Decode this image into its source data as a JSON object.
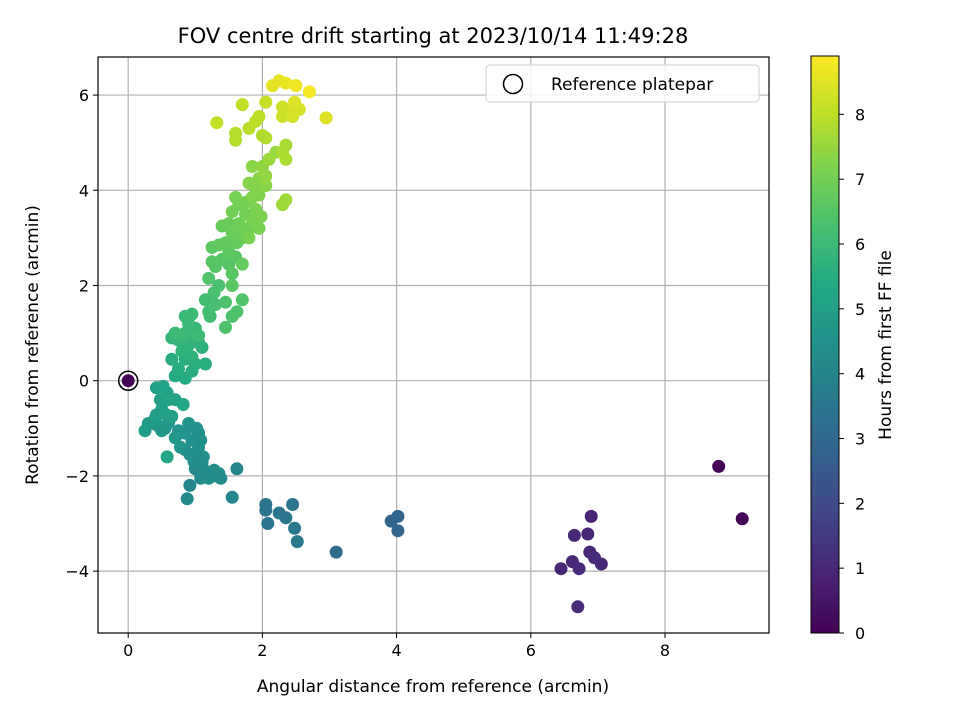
{
  "chart_data": {
    "type": "scatter",
    "title": "FOV centre drift starting at 2023/10/14 11:49:28",
    "xlabel": "Angular distance from reference (arcmin)",
    "ylabel": "Rotation from reference (arcmin)",
    "xlim": [
      -0.45,
      9.55
    ],
    "ylim": [
      -5.3,
      6.8
    ],
    "xticks": [
      0,
      2,
      4,
      6,
      8
    ],
    "yticks": [
      -4,
      -2,
      0,
      2,
      4,
      6
    ],
    "grid": true,
    "legend": {
      "placement": "top-right",
      "entries": [
        "Reference platepar"
      ]
    },
    "reference": {
      "x": 0,
      "y": 0
    },
    "colorbar": {
      "label": "Hours from first FF file",
      "colormap": "viridis",
      "range": [
        0,
        8.9
      ],
      "ticks": [
        0,
        1,
        2,
        3,
        4,
        5,
        6,
        7,
        8
      ]
    },
    "points": [
      [
        0,
        0,
        0.05
      ],
      [
        8.8,
        -1.8,
        0.1
      ],
      [
        9.15,
        -2.9,
        0.1
      ],
      [
        6.9,
        -2.85,
        0.9
      ],
      [
        6.65,
        -3.25,
        1.0
      ],
      [
        6.85,
        -3.22,
        0.95
      ],
      [
        6.45,
        -3.95,
        0.95
      ],
      [
        6.62,
        -3.8,
        1.0
      ],
      [
        6.72,
        -3.95,
        1.05
      ],
      [
        6.88,
        -3.6,
        1.0
      ],
      [
        6.95,
        -3.72,
        1.05
      ],
      [
        7.05,
        -3.85,
        1.0
      ],
      [
        6.7,
        -4.75,
        1.1
      ],
      [
        4.02,
        -2.85,
        2.9
      ],
      [
        3.92,
        -2.95,
        2.85
      ],
      [
        4.02,
        -3.15,
        2.9
      ],
      [
        3.1,
        -3.6,
        3.15
      ],
      [
        2.05,
        -2.6,
        3.4
      ],
      [
        2.05,
        -2.72,
        3.4
      ],
      [
        2.08,
        -3.0,
        3.45
      ],
      [
        2.25,
        -2.78,
        3.45
      ],
      [
        2.35,
        -2.88,
        3.5
      ],
      [
        2.45,
        -2.6,
        3.5
      ],
      [
        2.48,
        -3.1,
        3.55
      ],
      [
        2.52,
        -3.38,
        3.55
      ],
      [
        1.62,
        -1.85,
        4.05
      ],
      [
        1.55,
        -2.45,
        4.1
      ],
      [
        0.88,
        -2.48,
        4.15
      ],
      [
        0.92,
        -2.2,
        4.1
      ],
      [
        1.0,
        -1.85,
        4.2
      ],
      [
        1.08,
        -2.05,
        4.2
      ],
      [
        1.15,
        -1.9,
        4.2
      ],
      [
        1.2,
        -1.92,
        4.25
      ],
      [
        1.3,
        -2.0,
        4.25
      ],
      [
        1.35,
        -1.95,
        4.3
      ],
      [
        1.38,
        -2.05,
        4.25
      ],
      [
        1.28,
        -1.88,
        4.3
      ],
      [
        1.2,
        -2.05,
        4.3
      ],
      [
        1.1,
        -1.72,
        4.35
      ],
      [
        1.05,
        -1.6,
        4.35
      ],
      [
        0.98,
        -1.7,
        4.35
      ],
      [
        0.92,
        -1.55,
        4.4
      ],
      [
        0.85,
        -1.45,
        4.4
      ],
      [
        1.12,
        -1.6,
        4.4
      ],
      [
        1.05,
        -1.4,
        4.45
      ],
      [
        1.08,
        -1.25,
        4.45
      ],
      [
        1.05,
        -1.1,
        4.5
      ],
      [
        1.02,
        -1.0,
        4.5
      ],
      [
        0.95,
        -1.25,
        4.5
      ],
      [
        0.9,
        -0.9,
        4.55
      ],
      [
        0.85,
        -1.1,
        4.55
      ],
      [
        0.78,
        -1.4,
        4.6
      ],
      [
        0.75,
        -1.05,
        4.6
      ],
      [
        0.7,
        -1.2,
        4.65
      ],
      [
        0.6,
        -0.88,
        4.7
      ],
      [
        0.55,
        -1.0,
        4.7
      ],
      [
        0.5,
        -1.05,
        4.75
      ],
      [
        0.45,
        -0.95,
        4.75
      ],
      [
        0.4,
        -0.8,
        4.8
      ],
      [
        0.38,
        -0.9,
        4.85
      ],
      [
        0.3,
        -0.9,
        4.85
      ],
      [
        0.25,
        -1.05,
        4.9
      ],
      [
        0.42,
        -0.72,
        4.9
      ],
      [
        0.5,
        -0.6,
        4.95
      ],
      [
        0.48,
        -0.4,
        5.0
      ],
      [
        0.55,
        -0.7,
        5.0
      ],
      [
        0.65,
        -0.75,
        5.05
      ],
      [
        0.42,
        -0.15,
        5.05
      ],
      [
        0.52,
        -0.12,
        5.1
      ],
      [
        0.58,
        -0.25,
        5.1
      ],
      [
        0.6,
        -0.4,
        5.15
      ],
      [
        0.7,
        -0.4,
        5.15
      ],
      [
        0.82,
        -0.5,
        5.2
      ],
      [
        0.58,
        -1.6,
        5.25
      ],
      [
        0.7,
        0.1,
        5.4
      ],
      [
        0.85,
        0.05,
        5.45
      ],
      [
        0.95,
        0.2,
        5.5
      ],
      [
        0.75,
        0.25,
        5.5
      ],
      [
        0.85,
        0.45,
        5.55
      ],
      [
        0.65,
        0.45,
        5.55
      ],
      [
        1.0,
        0.35,
        5.6
      ],
      [
        1.15,
        0.35,
        5.6
      ],
      [
        1.1,
        0.7,
        5.65
      ],
      [
        0.95,
        0.5,
        5.7
      ],
      [
        1.05,
        0.8,
        5.7
      ],
      [
        0.9,
        0.75,
        5.75
      ],
      [
        0.8,
        0.62,
        5.75
      ],
      [
        0.92,
        0.9,
        5.8
      ],
      [
        0.75,
        0.85,
        5.8
      ],
      [
        0.65,
        0.9,
        5.85
      ],
      [
        0.85,
        1.0,
        5.85
      ],
      [
        0.95,
        1.05,
        5.9
      ],
      [
        1.0,
        1.1,
        5.9
      ],
      [
        0.9,
        1.2,
        5.95
      ],
      [
        0.85,
        1.35,
        5.95
      ],
      [
        0.95,
        1.4,
        6.0
      ],
      [
        0.78,
        0.95,
        6.0
      ],
      [
        0.7,
        1.0,
        6.05
      ],
      [
        1.05,
        0.95,
        6.05
      ],
      [
        1.15,
        1.7,
        6.15
      ],
      [
        1.2,
        1.45,
        6.2
      ],
      [
        1.22,
        1.35,
        6.2
      ],
      [
        1.3,
        1.6,
        6.25
      ],
      [
        1.28,
        1.85,
        6.3
      ],
      [
        1.35,
        2.0,
        6.3
      ],
      [
        1.45,
        1.65,
        6.35
      ],
      [
        1.55,
        1.35,
        6.35
      ],
      [
        1.62,
        1.45,
        6.4
      ],
      [
        1.45,
        1.12,
        6.4
      ],
      [
        1.7,
        1.7,
        6.45
      ],
      [
        1.2,
        2.15,
        6.45
      ],
      [
        1.3,
        2.4,
        6.5
      ],
      [
        1.4,
        2.55,
        6.5
      ],
      [
        1.25,
        2.5,
        6.55
      ],
      [
        1.5,
        2.45,
        6.55
      ],
      [
        1.55,
        2.0,
        6.6
      ],
      [
        1.55,
        2.25,
        6.6
      ],
      [
        1.6,
        2.6,
        6.6
      ],
      [
        1.5,
        2.7,
        6.65
      ],
      [
        1.25,
        2.8,
        6.65
      ],
      [
        1.35,
        2.85,
        6.7
      ],
      [
        1.45,
        2.9,
        6.7
      ],
      [
        1.62,
        2.9,
        6.75
      ],
      [
        1.7,
        2.45,
        6.75
      ],
      [
        1.4,
        3.25,
        6.8
      ],
      [
        1.5,
        3.3,
        6.85
      ],
      [
        1.55,
        3.1,
        6.85
      ],
      [
        1.6,
        3.2,
        6.9
      ],
      [
        1.7,
        3.0,
        6.9
      ],
      [
        1.75,
        3.1,
        6.9
      ],
      [
        1.8,
        3.2,
        6.95
      ],
      [
        1.65,
        3.3,
        6.95
      ],
      [
        1.55,
        3.55,
        7.0
      ],
      [
        1.65,
        3.7,
        7.0
      ],
      [
        1.75,
        3.5,
        7.0
      ],
      [
        1.6,
        3.85,
        7.05
      ],
      [
        1.75,
        3.75,
        7.05
      ],
      [
        1.85,
        3.35,
        7.1
      ],
      [
        1.8,
        3.0,
        7.1
      ],
      [
        1.95,
        3.2,
        7.1
      ],
      [
        1.9,
        3.6,
        7.15
      ],
      [
        1.98,
        3.45,
        7.15
      ],
      [
        1.85,
        3.85,
        7.2
      ],
      [
        1.95,
        3.9,
        7.2
      ],
      [
        1.8,
        4.15,
        7.25
      ],
      [
        1.9,
        4.05,
        7.25
      ],
      [
        1.95,
        4.25,
        7.3
      ],
      [
        2.05,
        4.1,
        7.35
      ],
      [
        1.85,
        4.5,
        7.35
      ],
      [
        2.0,
        4.5,
        7.4
      ],
      [
        2.05,
        4.3,
        7.45
      ],
      [
        2.2,
        4.8,
        7.5
      ],
      [
        2.1,
        4.65,
        7.55
      ],
      [
        2.3,
        3.7,
        7.6
      ],
      [
        2.35,
        3.8,
        7.6
      ],
      [
        2.35,
        4.95,
        7.7
      ],
      [
        2.3,
        4.8,
        7.75
      ],
      [
        2.35,
        4.65,
        7.8
      ],
      [
        2.05,
        5.1,
        7.85
      ],
      [
        2.0,
        5.15,
        7.85
      ],
      [
        1.6,
        5.2,
        7.9
      ],
      [
        1.6,
        5.05,
        7.9
      ],
      [
        1.8,
        5.3,
        7.95
      ],
      [
        1.9,
        5.45,
        8.0
      ],
      [
        1.95,
        5.55,
        8.0
      ],
      [
        1.7,
        5.8,
        8.05
      ],
      [
        1.32,
        5.42,
        8.1
      ],
      [
        2.05,
        5.85,
        8.15
      ],
      [
        2.3,
        5.55,
        8.2
      ],
      [
        2.3,
        5.75,
        8.25
      ],
      [
        2.45,
        5.55,
        8.3
      ],
      [
        2.55,
        5.7,
        8.35
      ],
      [
        2.45,
        5.65,
        8.4
      ],
      [
        2.48,
        5.85,
        8.45
      ],
      [
        2.95,
        5.52,
        8.5
      ],
      [
        2.15,
        6.2,
        8.55
      ],
      [
        2.25,
        6.3,
        8.6
      ],
      [
        2.35,
        6.25,
        8.65
      ],
      [
        2.5,
        6.2,
        8.7
      ],
      [
        2.7,
        6.07,
        8.75
      ]
    ]
  }
}
